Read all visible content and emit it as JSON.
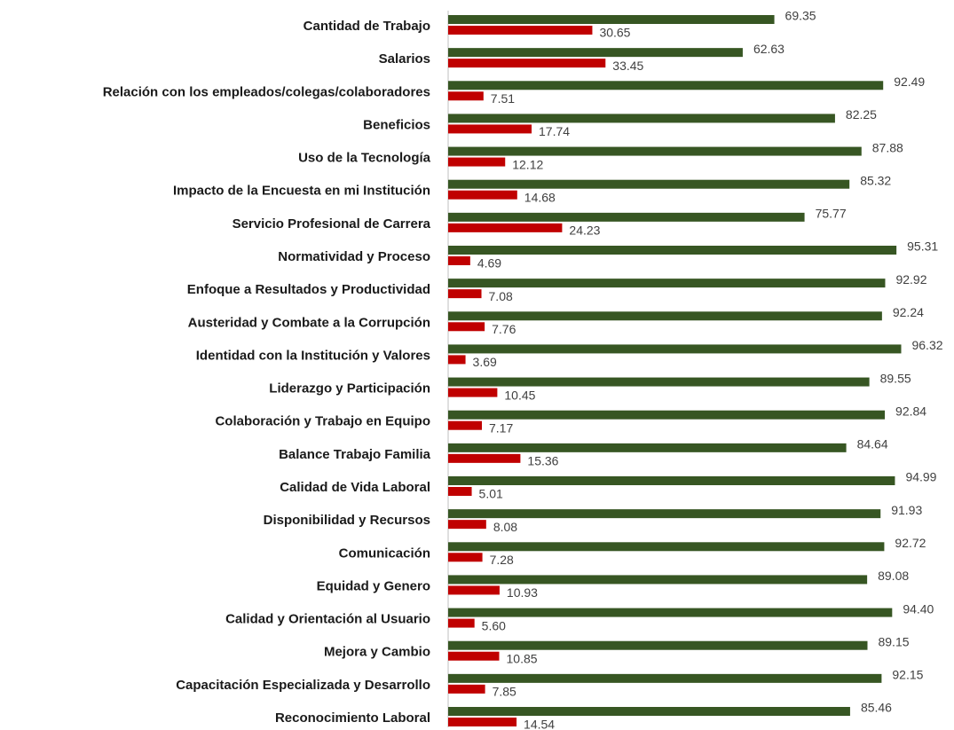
{
  "chart_data": {
    "type": "barh",
    "categories": [
      "Cantidad de Trabajo",
      "Salarios",
      "Relación con los empleados/colegas/colaboradores",
      "Beneficios",
      "Uso de la Tecnología",
      "Impacto de la Encuesta en mi Institución",
      "Servicio Profesional de Carrera",
      "Normatividad y Proceso",
      "Enfoque a Resultados y Productividad",
      "Austeridad y Combate a la Corrupción",
      "Identidad con la Institución y Valores",
      "Liderazgo y Participación",
      "Colaboración y Trabajo en Equipo",
      "Balance Trabajo Familia",
      "Calidad de Vida Laboral",
      "Disponibilidad y Recursos",
      "Comunicación",
      "Equidad y Genero",
      "Calidad y Orientación al Usuario",
      "Mejora y Cambio",
      "Capacitación Especializada y Desarrollo",
      "Reconocimiento Laboral"
    ],
    "series": [
      {
        "color": "#375623",
        "values": [
          69.35,
          62.63,
          92.49,
          82.25,
          87.88,
          85.32,
          75.77,
          95.31,
          92.92,
          92.24,
          96.32,
          89.55,
          92.84,
          84.64,
          94.99,
          91.93,
          92.72,
          89.08,
          94.4,
          89.15,
          92.15,
          85.46
        ],
        "value_labels": [
          "69.35",
          "62.63",
          "92.49",
          "82.25",
          "87.88",
          "85.32",
          "75.77",
          "95.31",
          "92.92",
          "92.24",
          "96.32",
          "89.55",
          "92.84",
          "84.64",
          "94.99",
          "91.93",
          "92.72",
          "89.08",
          "94.40",
          "89.15",
          "92.15",
          "85.46"
        ]
      },
      {
        "color": "#c00000",
        "values": [
          30.65,
          33.45,
          7.51,
          17.74,
          12.12,
          14.68,
          24.23,
          4.69,
          7.08,
          7.76,
          3.69,
          10.45,
          7.17,
          15.36,
          5.01,
          8.08,
          7.28,
          10.93,
          5.6,
          10.85,
          7.85,
          14.54
        ],
        "value_labels": [
          "30.65",
          "33.45",
          "7.51",
          "17.74",
          "12.12",
          "14.68",
          "24.23",
          "4.69",
          "7.08",
          "7.76",
          "3.69",
          "10.45",
          "7.17",
          "15.36",
          "5.01",
          "8.08",
          "7.28",
          "10.93",
          "5.60",
          "10.85",
          "7.85",
          "14.54"
        ]
      }
    ],
    "xlim": [
      0,
      100
    ]
  }
}
